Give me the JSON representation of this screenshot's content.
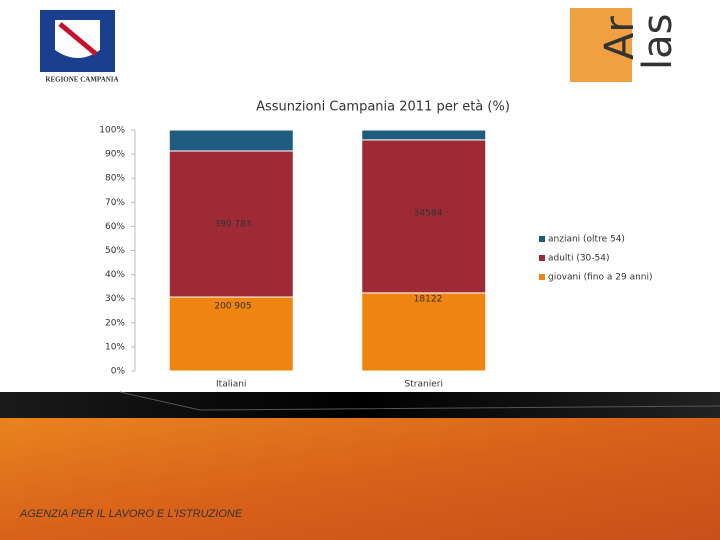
{
  "header": {
    "left_logo": "REGIONE CAMPANIA",
    "right_logo_a": "Ar",
    "right_logo_b": "las"
  },
  "footer": "AGENZIA PER IL LAVORO E L'ISTRUZIONE",
  "chart_data": {
    "type": "stacked_bar",
    "title": "Assunzioni Campania 2011 per età (%)",
    "categories": [
      "Italiani",
      "Stranieri"
    ],
    "series": [
      {
        "name": "giovani (fino a 29 anni)",
        "color": "#ef8410",
        "values": [
          30.7,
          32.4
        ]
      },
      {
        "name": "adulti (30-54)",
        "color": "#9e2a36",
        "values": [
          60.6,
          63.5
        ]
      },
      {
        "name": "anziani (oltre 54)",
        "color": "#1f5c7f",
        "values": [
          8.7,
          4.1
        ]
      }
    ],
    "annotations": [
      "390 783",
      "34584",
      "200 905",
      "18122"
    ],
    "ylim": [
      0,
      100
    ],
    "yticks": [
      {
        "value": 0,
        "label": "0%"
      },
      {
        "value": 10,
        "label": "10%"
      },
      {
        "value": 20,
        "label": "20%"
      },
      {
        "value": 30,
        "label": "30%"
      },
      {
        "value": 40,
        "label": "40%"
      },
      {
        "value": 50,
        "label": "50%"
      },
      {
        "value": 60,
        "label": "60%"
      },
      {
        "value": 70,
        "label": "70%"
      },
      {
        "value": 80,
        "label": "80%"
      },
      {
        "value": 90,
        "label": "90%"
      },
      {
        "value": 100,
        "label": "100%"
      }
    ],
    "legend": "right"
  }
}
